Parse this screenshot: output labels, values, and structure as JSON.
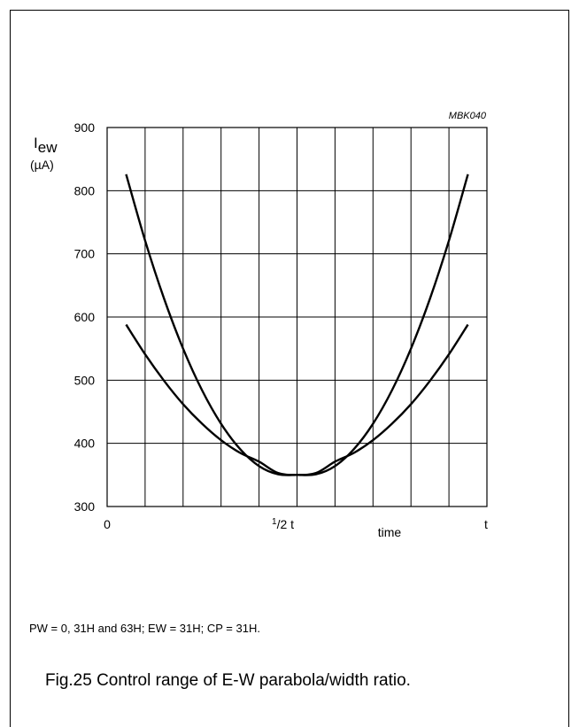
{
  "chart_data": {
    "type": "line",
    "id_tag": "MBK040",
    "ylabel_main": "I",
    "ylabel_sub": "ew",
    "ylabel_unit": "(µA)",
    "xlabel": "time",
    "ylim": [
      300,
      900
    ],
    "xlim": [
      0,
      1
    ],
    "grid": true,
    "y_ticks": [
      "300",
      "400",
      "500",
      "600",
      "700",
      "800",
      "900"
    ],
    "y_tick_values": [
      300,
      400,
      500,
      600,
      700,
      800,
      900
    ],
    "x_tick_zero": "0",
    "x_tick_half_sup": "1",
    "x_tick_half_rest": "/2 t",
    "x_tick_end": "t",
    "series": [
      {
        "x": [
          0.05,
          0.1,
          0.15,
          0.2,
          0.25,
          0.3,
          0.35,
          0.4,
          0.45,
          0.5,
          0.55,
          0.6,
          0.65,
          0.7,
          0.75,
          0.8,
          0.85,
          0.9,
          0.95
        ],
        "y": [
          826,
          721,
          629,
          550,
          484,
          431,
          391,
          364,
          351,
          350,
          351,
          364,
          391,
          431,
          484,
          550,
          629,
          721,
          826
        ]
      },
      {
        "x": [
          0.05,
          0.1,
          0.15,
          0.2,
          0.25,
          0.3,
          0.35,
          0.4,
          0.45,
          0.5,
          0.55,
          0.6,
          0.65,
          0.7,
          0.75,
          0.8,
          0.85,
          0.9,
          0.95
        ],
        "y": [
          588,
          541,
          499,
          462,
          431,
          405,
          385,
          371,
          353,
          350,
          353,
          371,
          385,
          405,
          431,
          462,
          499,
          541,
          588
        ]
      }
    ]
  },
  "note": "PW = 0, 31H and 63H; EW = 31H; CP = 31H.",
  "caption": "Fig.25  Control range of E-W parabola/width ratio."
}
